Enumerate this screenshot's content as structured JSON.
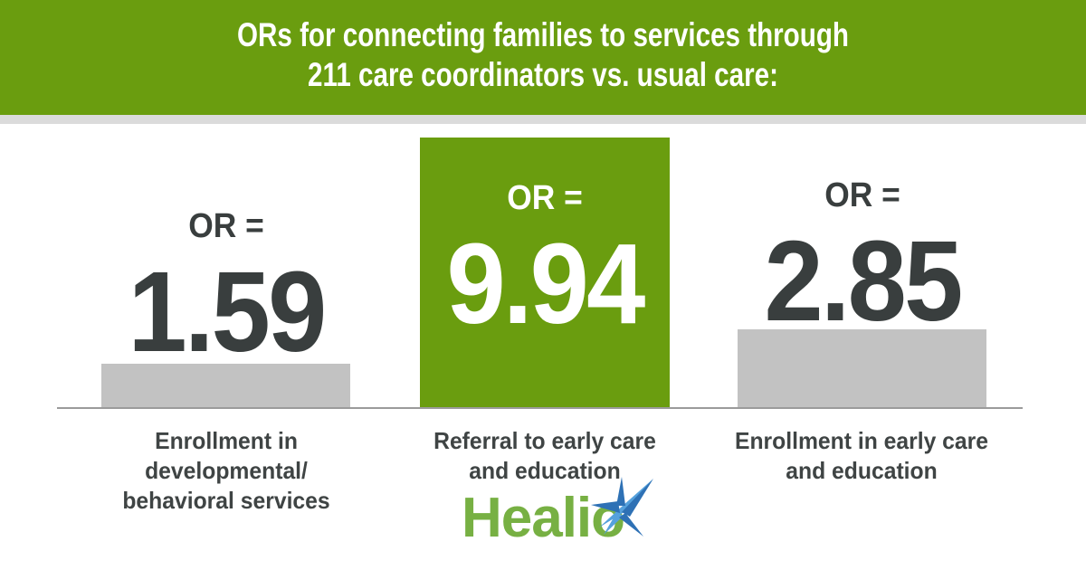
{
  "header": {
    "line1": "ORs for connecting families to services through",
    "line2": "211 care coordinators vs. usual care:"
  },
  "chart_data": {
    "type": "bar",
    "title": "ORs for connecting families to services through 211 care coordinators vs. usual care:",
    "categories": [
      "Enrollment in developmental/ behavioral services",
      "Referral to early care and education",
      "Enrollment in early care and education"
    ],
    "values": [
      1.59,
      9.94,
      2.85
    ],
    "value_label_prefix": "OR =",
    "highlight_index": 1,
    "orientation": "vertical",
    "grid": false,
    "ylim": [
      0,
      9.94
    ]
  },
  "columns": [
    {
      "or_label": "OR =",
      "value": "1.59",
      "label_line1": "Enrollment in developmental/",
      "label_line2": "behavioral services"
    },
    {
      "or_label": "OR =",
      "value": "9.94",
      "label_line1": "Referral to early care",
      "label_line2": "and education"
    },
    {
      "or_label": "OR =",
      "value": "2.85",
      "label_line1": "Enrollment in early care",
      "label_line2": "and education"
    }
  ],
  "logo": {
    "text": "Healio",
    "star_icon": "sparkle-star"
  },
  "colors": {
    "banner_green": "#6A9D0F",
    "highlight_bar_green": "#6A9D0F",
    "bar_gray": "#C2C2C2",
    "divider_gray": "#DBDBDB",
    "baseline_gray": "#9B9B9B",
    "dark_text": "#393E3E",
    "label_text": "#3F4444",
    "logo_green": "#77B043",
    "star_blue_dark": "#2E71B5",
    "star_blue_light": "#55A1DC"
  }
}
